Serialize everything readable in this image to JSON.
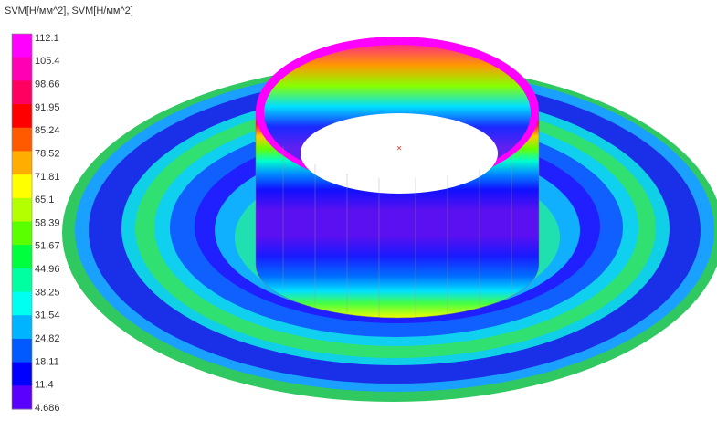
{
  "legend": {
    "title": "SVM[Н/мм^2], SVM[Н/мм^2]",
    "levels": [
      "112.1",
      "105.4",
      "98.66",
      "91.95",
      "85.24",
      "78.52",
      "71.81",
      "65.1",
      "58.39",
      "51.67",
      "44.96",
      "38.25",
      "31.54",
      "24.82",
      "18.11",
      "11.4",
      "4.686"
    ],
    "colors": [
      "#ff00ff",
      "#ff00b4",
      "#ff0060",
      "#ff0000",
      "#ff5a00",
      "#ffae00",
      "#ffff00",
      "#b4ff00",
      "#5aff00",
      "#00ff3c",
      "#00ffa0",
      "#00fff0",
      "#00b4ff",
      "#005aff",
      "#0000ff",
      "#5a00ff"
    ]
  }
}
